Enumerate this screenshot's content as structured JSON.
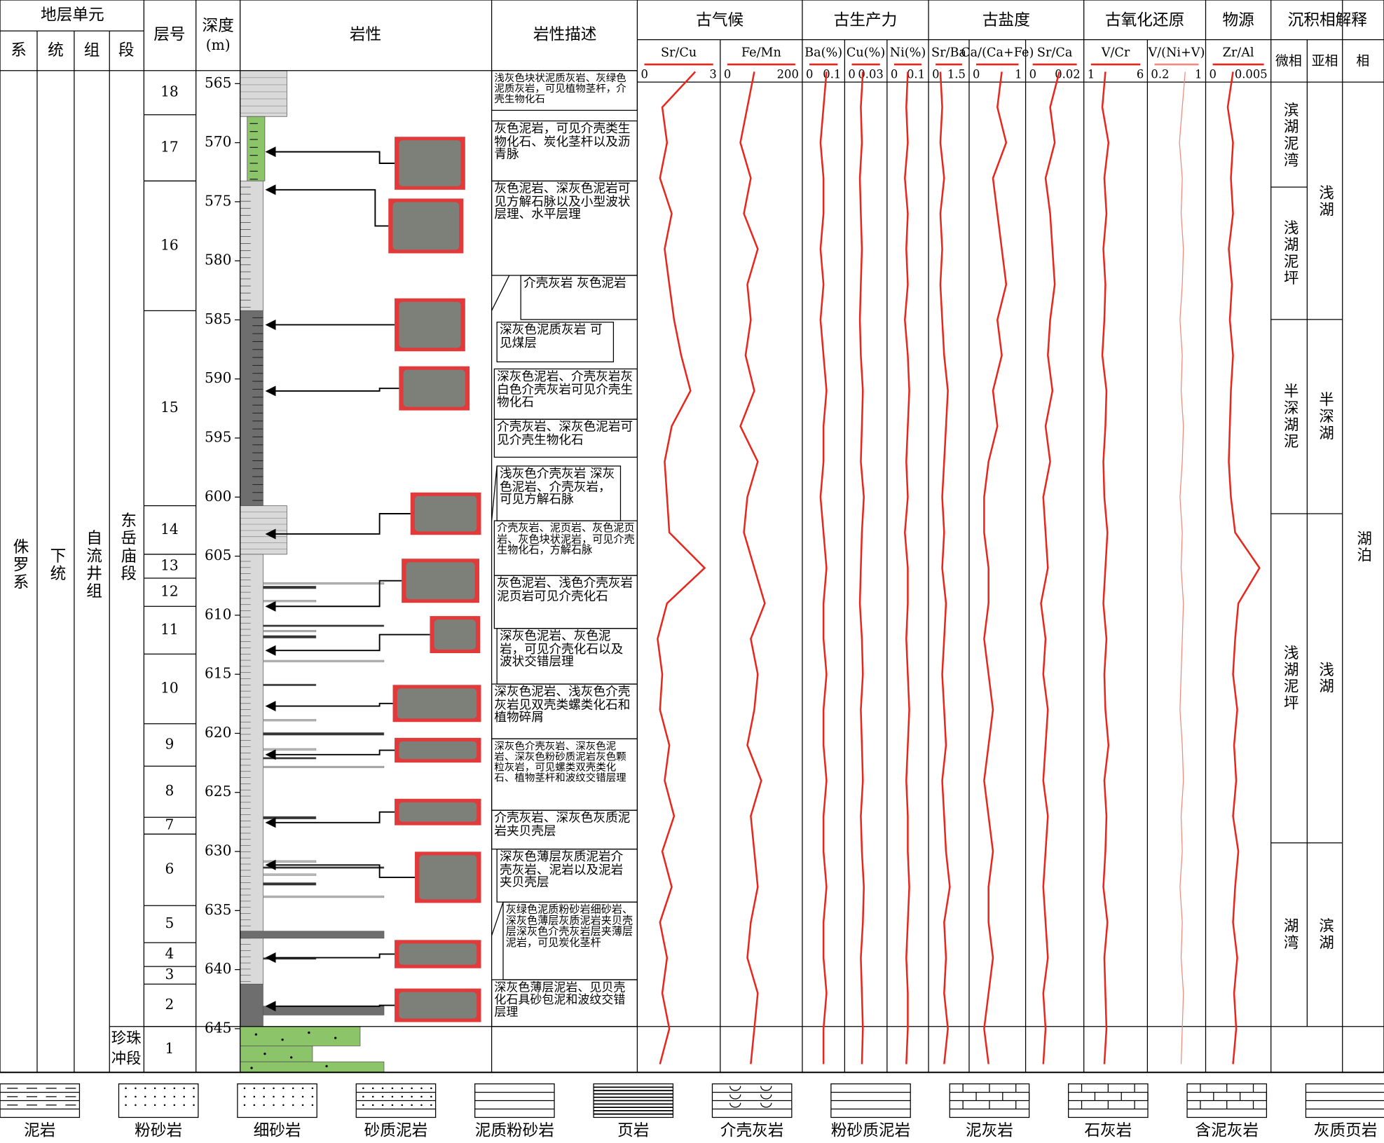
{
  "header": {
    "strat_unit": "地层单元",
    "system": "系",
    "series": "统",
    "formation": "组",
    "member": "段",
    "layer_no": "层号",
    "depth": "深度",
    "depth_unit": "(m)",
    "lithology": "岩性",
    "description": "岩性描述"
  },
  "strata": {
    "system": "侏罗系",
    "series": "下统",
    "formation": "自流井组",
    "member_upper": "东岳庙段",
    "member_lower": [
      "珍珠",
      "冲段"
    ]
  },
  "layer_numbers": [
    "18",
    "17",
    "16",
    "15",
    "14",
    "13",
    "12",
    "11",
    "10",
    "9",
    "8",
    "7",
    "6",
    "5",
    "4",
    "3",
    "2",
    "1"
  ],
  "descriptions": [
    "浅灰色块状泥质灰岩、灰绿色泥质灰岩，可见植物茎杆，介壳生物化石",
    "灰色泥岩，可见介壳类生物化石、炭化茎杆以及沥青脉",
    "灰色泥岩、深灰色泥岩可见方解石脉以及小型波状层理、水平层理",
    "介壳灰岩 灰色泥岩",
    "深灰色泥质灰岩 可见煤层",
    "深灰色泥岩、介壳灰岩灰白色介壳灰岩可见介壳生物化石",
    "介壳灰岩、深灰色泥岩可见介壳生物化石",
    "浅灰色介壳灰岩 深灰色泥岩、介壳灰岩，可见方解石脉",
    "介壳灰岩、泥页岩、灰色泥页岩、灰色块状泥岩，可见介壳生物化石，方解石脉",
    "灰色泥岩、浅色介壳灰岩泥页岩可见介壳化石",
    "深灰色泥岩、灰色泥岩，可见介壳化石以及波状交错层理",
    "深灰色泥岩、浅灰色介壳灰岩见双壳类螺类化石和植物碎屑",
    "深灰色介壳灰岩、深灰色泥岩、深灰色粉砂质泥岩灰色颗粒灰岩，可见螺类双壳类化石、植物茎杆和波纹交错层理",
    "介壳灰岩、深灰色灰质泥岩夹贝壳层",
    "深灰色薄层灰质泥岩介壳灰岩、泥岩以及泥岩夹贝壳层",
    "灰绿色泥质粉砂岩细砂岩、深灰色薄层灰质泥岩夹贝壳层深灰色介壳灰岩层夹薄层泥岩，可见炭化茎杆",
    "深灰色薄层泥岩、见贝壳化石具砂包泥和波纹交错层理"
  ],
  "facies": {
    "header": "沉积相解释",
    "micro_label": "微相",
    "sub_label": "亚相",
    "facies_label": "相",
    "micro": [
      "滨湖泥湾",
      "浅湖泥坪",
      "半深湖泥",
      "浅湖泥坪",
      "湖湾"
    ],
    "sub": [
      "浅湖",
      "半深湖",
      "浅湖",
      "滨湖"
    ],
    "facies": "湖泊"
  },
  "legend": [
    "泥岩",
    "粉砂岩",
    "细砂岩",
    "砂质泥岩",
    "泥质粉砂岩",
    "页岩",
    "介壳灰岩",
    "粉砂质泥岩",
    "泥灰岩",
    "石灰岩",
    "含泥灰岩",
    "灰质页岩"
  ],
  "chart_data": {
    "type": "line",
    "groups": [
      "古气候",
      "古生产力",
      "古盐度",
      "古氧化还原",
      "物源"
    ],
    "ylim": [
      563.9,
      648.7
    ],
    "yticks": [
      565,
      570,
      575,
      580,
      585,
      590,
      595,
      600,
      605,
      610,
      615,
      620,
      625,
      630,
      635,
      640,
      645
    ],
    "y": [
      564,
      567,
      570,
      573,
      576,
      579,
      582,
      585,
      588,
      591,
      594,
      597,
      600,
      603,
      606,
      609,
      612,
      615,
      618,
      621,
      624,
      627,
      630,
      633,
      636,
      639,
      642,
      645,
      648
    ],
    "series": [
      {
        "name": "Sr/Cu",
        "color": "#e8261c",
        "xlim": [
          0,
          3
        ],
        "xticks": [
          0,
          3
        ],
        "values": [
          2.2,
          0.8,
          1.0,
          0.7,
          1.2,
          0.9,
          1.1,
          1.3,
          1.6,
          2.0,
          1.2,
          0.9,
          1.0,
          1.1,
          2.6,
          1.0,
          0.6,
          0.8,
          0.7,
          1.1,
          0.9,
          1.3,
          0.8,
          1.2,
          0.7,
          1.0,
          0.8,
          1.1,
          0.7
        ]
      },
      {
        "name": "Fe/Mn",
        "color": "#e8261c",
        "xlim": [
          0,
          200
        ],
        "xticks": [
          0,
          200
        ],
        "values": [
          80,
          60,
          40,
          70,
          50,
          90,
          60,
          70,
          55,
          80,
          40,
          90,
          60,
          50,
          80,
          110,
          70,
          90,
          80,
          60,
          100,
          70,
          80,
          90,
          70,
          60,
          90,
          80,
          70
        ]
      },
      {
        "name": "Ba(%)",
        "color": "#e8261c",
        "xlim": [
          0,
          0.1
        ],
        "xticks": [
          0,
          0.1
        ],
        "values": [
          0.06,
          0.05,
          0.04,
          0.05,
          0.05,
          0.04,
          0.05,
          0.04,
          0.05,
          0.06,
          0.05,
          0.05,
          0.04,
          0.05,
          0.06,
          0.05,
          0.05,
          0.06,
          0.05,
          0.05,
          0.06,
          0.05,
          0.05,
          0.06,
          0.05,
          0.05,
          0.06,
          0.05,
          0.05
        ]
      },
      {
        "name": "Cu(%)",
        "color": "#e8261c",
        "xlim": [
          0,
          0.03
        ],
        "xticks": [
          0,
          0.03
        ],
        "values": [
          0.012,
          0.01,
          0.011,
          0.009,
          0.01,
          0.011,
          0.01,
          0.009,
          0.01,
          0.012,
          0.011,
          0.01,
          0.013,
          0.011,
          0.01,
          0.009,
          0.011,
          0.012,
          0.01,
          0.011,
          0.012,
          0.01,
          0.011,
          0.013,
          0.012,
          0.01,
          0.011,
          0.012,
          0.011
        ]
      },
      {
        "name": "Ni(%)",
        "color": "#e8261c",
        "xlim": [
          0,
          0.1
        ],
        "xticks": [
          0,
          0.1
        ],
        "values": [
          0.05,
          0.045,
          0.05,
          0.04,
          0.05,
          0.045,
          0.05,
          0.04,
          0.05,
          0.055,
          0.05,
          0.045,
          0.05,
          0.04,
          0.05,
          0.05,
          0.045,
          0.05,
          0.055,
          0.05,
          0.045,
          0.05,
          0.05,
          0.055,
          0.05,
          0.045,
          0.05,
          0.05,
          0.045
        ]
      },
      {
        "name": "Sr/Ba",
        "color": "#e8261c",
        "xlim": [
          0,
          1.5
        ],
        "xticks": [
          0,
          1.5
        ],
        "values": [
          0.3,
          0.4,
          0.3,
          0.5,
          0.3,
          0.4,
          0.3,
          0.4,
          0.5,
          0.7,
          0.6,
          0.5,
          0.4,
          0.5,
          0.4,
          0.6,
          0.5,
          0.4,
          0.5,
          0.6,
          0.4,
          0.5,
          0.6,
          0.8,
          0.5,
          0.6,
          0.5,
          0.7,
          0.5
        ]
      },
      {
        "name": "Ca/(Ca+Fe)",
        "color": "#e8261c",
        "xlim": [
          0,
          1
        ],
        "xticks": [
          0,
          1
        ],
        "values": [
          0.6,
          0.5,
          0.7,
          0.4,
          0.5,
          0.6,
          0.7,
          0.5,
          0.6,
          0.4,
          0.5,
          0.3,
          0.2,
          0.2,
          0.3,
          0.3,
          0.2,
          0.3,
          0.4,
          0.3,
          0.2,
          0.3,
          0.4,
          0.3,
          0.3,
          0.4,
          0.3,
          0.2,
          0.3
        ]
      },
      {
        "name": "Sr/Ca",
        "color": "#e8261c",
        "xlim": [
          0,
          0.02
        ],
        "xticks": [
          0,
          0.02
        ],
        "values": [
          0.012,
          0.008,
          0.01,
          0.006,
          0.008,
          0.009,
          0.01,
          0.008,
          0.007,
          0.009,
          0.006,
          0.008,
          0.005,
          0.006,
          0.007,
          0.004,
          0.006,
          0.005,
          0.007,
          0.006,
          0.005,
          0.007,
          0.006,
          0.005,
          0.006,
          0.007,
          0.005,
          0.006,
          0.005
        ]
      },
      {
        "name": "V/Cr",
        "color": "#e8261c",
        "xlim": [
          1,
          6
        ],
        "xticks": [
          1,
          6
        ],
        "values": [
          2.5,
          2.2,
          2.8,
          2.4,
          2.6,
          2.3,
          2.5,
          2.4,
          2.2,
          2.6,
          2.5,
          2.3,
          2.4,
          2.7,
          2.5,
          2.3,
          2.6,
          2.4,
          2.5,
          2.8,
          2.4,
          2.6,
          2.5,
          2.3,
          2.7,
          2.4,
          2.5,
          2.6,
          2.4
        ]
      },
      {
        "name": "V/(Ni+V)",
        "color": "#f08a80",
        "xlim": [
          0.2,
          1
        ],
        "xticks": [
          0.2,
          1
        ],
        "values": [
          0.75,
          0.7,
          0.65,
          0.7,
          0.68,
          0.72,
          0.7,
          0.66,
          0.7,
          0.68,
          0.72,
          0.7,
          0.66,
          0.7,
          0.68,
          0.72,
          0.7,
          0.68,
          0.66,
          0.7,
          0.72,
          0.68,
          0.7,
          0.66,
          0.7,
          0.68,
          0.72,
          0.7,
          0.68
        ]
      },
      {
        "name": "Zr/Al",
        "color": "#e8261c",
        "xlim": [
          0,
          0.005
        ],
        "xticks": [
          0,
          0.005
        ],
        "values": [
          0.002,
          0.0015,
          0.002,
          0.0018,
          0.002,
          0.0016,
          0.0019,
          0.0017,
          0.002,
          0.0018,
          0.0017,
          0.0016,
          0.0018,
          0.0022,
          0.0045,
          0.0025,
          0.0022,
          0.002,
          0.0024,
          0.0021,
          0.0023,
          0.002,
          0.0025,
          0.0022,
          0.002,
          0.0024,
          0.0021,
          0.0023,
          0.002
        ]
      }
    ]
  }
}
